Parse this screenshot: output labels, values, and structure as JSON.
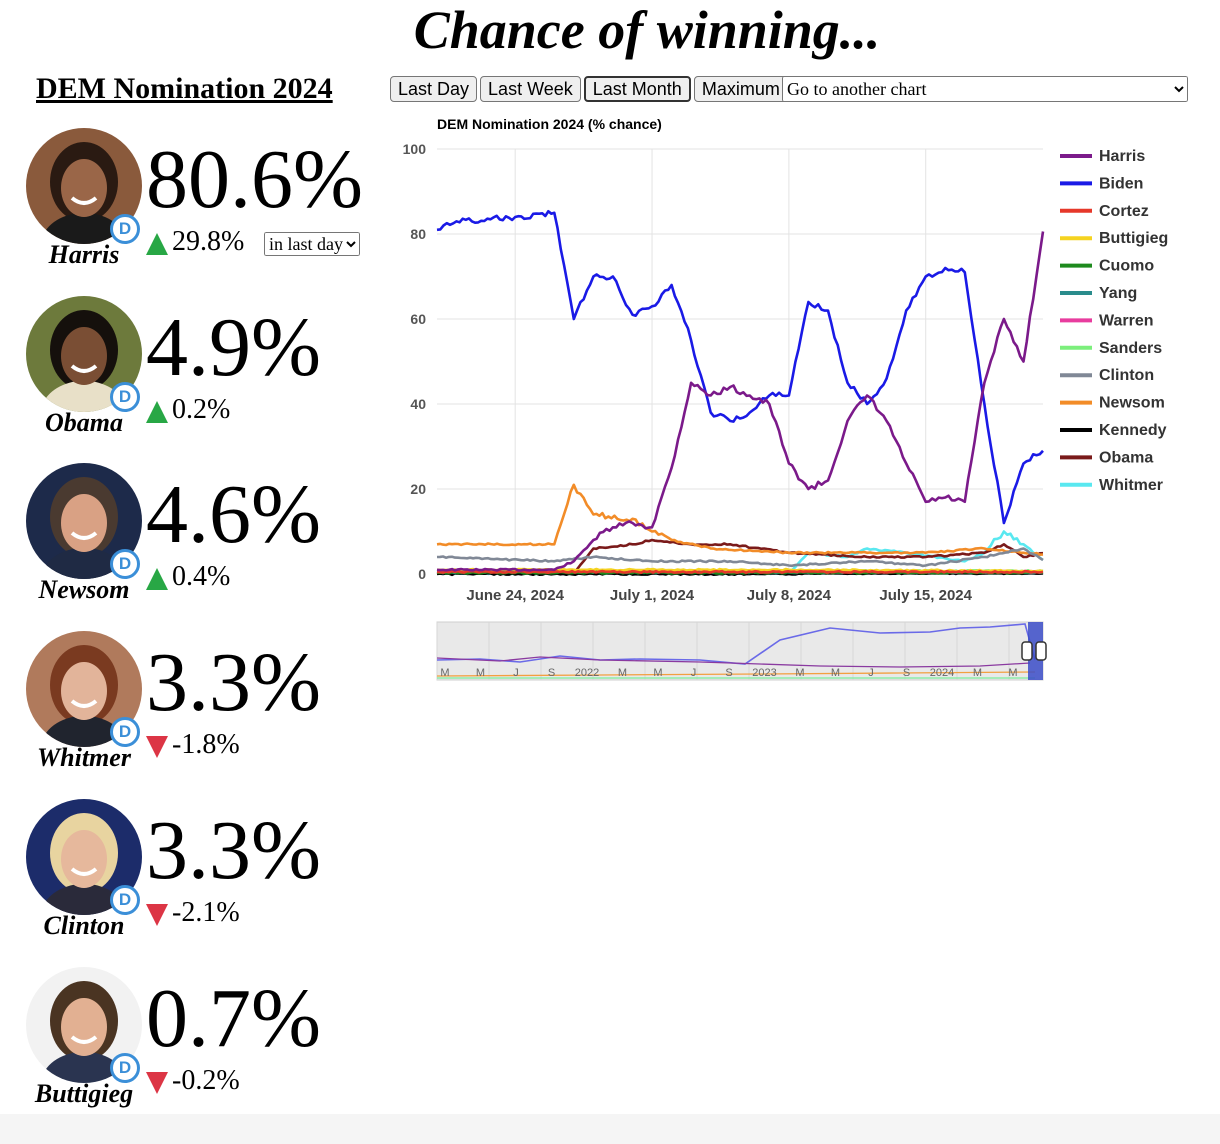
{
  "page_title": "Chance of winning...",
  "nomination_title": "DEM Nomination 2024",
  "buttons": [
    "Last Day",
    "Last Week",
    "Last Month",
    "Maximum"
  ],
  "active_button": "Last Month",
  "chart_select": "Go to another chart",
  "period_select": "in last day",
  "party_badge": "D",
  "candidates": [
    {
      "name": "Harris",
      "pct": "80.6%",
      "change": "29.8%",
      "direction": "up",
      "color": "#7b1a8a"
    },
    {
      "name": "Obama",
      "pct": "4.9%",
      "change": "0.2%",
      "direction": "up",
      "color": "#7a1a1a"
    },
    {
      "name": "Newsom",
      "pct": "4.6%",
      "change": "0.4%",
      "direction": "up",
      "color": "#f28c28"
    },
    {
      "name": "Whitmer",
      "pct": "3.3%",
      "change": "-1.8%",
      "direction": "down",
      "color": "#59e8f0"
    },
    {
      "name": "Clinton",
      "pct": "3.3%",
      "change": "-2.1%",
      "direction": "down",
      "color": "#808896"
    },
    {
      "name": "Buttigieg",
      "pct": "0.7%",
      "change": "-0.2%",
      "direction": "down",
      "color": "#f5d320"
    }
  ],
  "chart_data": {
    "type": "line",
    "title": "DEM Nomination 2024 (% chance)",
    "xlabel": "",
    "ylabel": "",
    "x_start": "2024-06-20",
    "x_end": "2024-07-21",
    "x_ticks": [
      "June 24, 2024",
      "July 1, 2024",
      "July 8, 2024",
      "July 15, 2024"
    ],
    "x_tick_dates": [
      "2024-06-24",
      "2024-07-01",
      "2024-07-08",
      "2024-07-15"
    ],
    "ylim": [
      0,
      100
    ],
    "y_ticks": [
      0,
      20,
      40,
      60,
      80,
      100
    ],
    "grid": true,
    "legend_position": "right",
    "series": [
      {
        "name": "Harris",
        "color": "#7b1a8a",
        "points": [
          [
            "2024-06-20",
            1
          ],
          [
            "2024-06-26",
            1
          ],
          [
            "2024-06-27",
            3
          ],
          [
            "2024-06-28",
            8
          ],
          [
            "2024-06-29",
            11
          ],
          [
            "2024-06-30",
            12
          ],
          [
            "2024-07-01",
            11
          ],
          [
            "2024-07-02",
            25
          ],
          [
            "2024-07-03",
            45
          ],
          [
            "2024-07-04",
            42
          ],
          [
            "2024-07-05",
            44
          ],
          [
            "2024-07-06",
            42
          ],
          [
            "2024-07-07",
            40
          ],
          [
            "2024-07-08",
            26
          ],
          [
            "2024-07-09",
            20
          ],
          [
            "2024-07-10",
            22
          ],
          [
            "2024-07-11",
            36
          ],
          [
            "2024-07-12",
            42
          ],
          [
            "2024-07-13",
            36
          ],
          [
            "2024-07-14",
            26
          ],
          [
            "2024-07-15",
            17
          ],
          [
            "2024-07-16",
            18
          ],
          [
            "2024-07-17",
            17
          ],
          [
            "2024-07-18",
            45
          ],
          [
            "2024-07-19",
            60
          ],
          [
            "2024-07-20",
            50
          ],
          [
            "2024-07-21",
            80.6
          ]
        ]
      },
      {
        "name": "Biden",
        "color": "#1a1ae6",
        "points": [
          [
            "2024-06-20",
            81
          ],
          [
            "2024-06-21",
            83
          ],
          [
            "2024-06-24",
            84
          ],
          [
            "2024-06-26",
            85
          ],
          [
            "2024-06-27",
            60
          ],
          [
            "2024-06-28",
            70
          ],
          [
            "2024-06-29",
            70
          ],
          [
            "2024-06-30",
            61
          ],
          [
            "2024-07-01",
            63
          ],
          [
            "2024-07-02",
            68
          ],
          [
            "2024-07-03",
            55
          ],
          [
            "2024-07-04",
            38
          ],
          [
            "2024-07-05",
            36
          ],
          [
            "2024-07-06",
            38
          ],
          [
            "2024-07-07",
            42
          ],
          [
            "2024-07-08",
            42
          ],
          [
            "2024-07-09",
            64
          ],
          [
            "2024-07-10",
            62
          ],
          [
            "2024-07-11",
            45
          ],
          [
            "2024-07-12",
            40
          ],
          [
            "2024-07-13",
            46
          ],
          [
            "2024-07-14",
            62
          ],
          [
            "2024-07-15",
            70
          ],
          [
            "2024-07-16",
            72
          ],
          [
            "2024-07-17",
            71
          ],
          [
            "2024-07-18",
            40
          ],
          [
            "2024-07-19",
            12
          ],
          [
            "2024-07-20",
            26
          ],
          [
            "2024-07-21",
            29
          ]
        ]
      },
      {
        "name": "Cortez",
        "color": "#e6382a",
        "points": [
          [
            "2024-06-20",
            0.5
          ],
          [
            "2024-07-21",
            0.5
          ]
        ]
      },
      {
        "name": "Buttigieg",
        "color": "#f5d320",
        "points": [
          [
            "2024-06-20",
            1
          ],
          [
            "2024-07-08",
            1
          ],
          [
            "2024-07-21",
            0.7
          ]
        ]
      },
      {
        "name": "Cuomo",
        "color": "#1e8a1e",
        "points": [
          [
            "2024-06-20",
            0.3
          ],
          [
            "2024-07-21",
            0.3
          ]
        ]
      },
      {
        "name": "Yang",
        "color": "#2a8c8c",
        "points": [
          [
            "2024-06-20",
            0.4
          ],
          [
            "2024-07-21",
            0.4
          ]
        ]
      },
      {
        "name": "Warren",
        "color": "#e83c9e",
        "points": [
          [
            "2024-06-20",
            0.6
          ],
          [
            "2024-07-21",
            0.6
          ]
        ]
      },
      {
        "name": "Sanders",
        "color": "#7cef7c",
        "points": [
          [
            "2024-06-20",
            0.7
          ],
          [
            "2024-07-21",
            0.7
          ]
        ]
      },
      {
        "name": "Clinton",
        "color": "#808896",
        "points": [
          [
            "2024-06-20",
            4
          ],
          [
            "2024-06-26",
            3
          ],
          [
            "2024-06-28",
            4
          ],
          [
            "2024-07-01",
            3
          ],
          [
            "2024-07-05",
            3
          ],
          [
            "2024-07-08",
            2
          ],
          [
            "2024-07-12",
            3
          ],
          [
            "2024-07-15",
            2
          ],
          [
            "2024-07-18",
            4
          ],
          [
            "2024-07-20",
            6
          ],
          [
            "2024-07-21",
            3.3
          ]
        ]
      },
      {
        "name": "Newsom",
        "color": "#f28c28",
        "points": [
          [
            "2024-06-20",
            7
          ],
          [
            "2024-06-26",
            7
          ],
          [
            "2024-06-27",
            21
          ],
          [
            "2024-06-28",
            14
          ],
          [
            "2024-06-30",
            13
          ],
          [
            "2024-07-01",
            10
          ],
          [
            "2024-07-02",
            8
          ],
          [
            "2024-07-04",
            6
          ],
          [
            "2024-07-08",
            5
          ],
          [
            "2024-07-12",
            5
          ],
          [
            "2024-07-15",
            5
          ],
          [
            "2024-07-18",
            6
          ],
          [
            "2024-07-20",
            5
          ],
          [
            "2024-07-21",
            4.6
          ]
        ]
      },
      {
        "name": "Kennedy",
        "color": "#000000",
        "points": [
          [
            "2024-06-20",
            0
          ],
          [
            "2024-07-08",
            0
          ],
          [
            "2024-07-09",
            0.2
          ],
          [
            "2024-07-21",
            0.2
          ]
        ]
      },
      {
        "name": "Obama",
        "color": "#7a1a1a",
        "points": [
          [
            "2024-06-27",
            0
          ],
          [
            "2024-06-28",
            6
          ],
          [
            "2024-06-30",
            7
          ],
          [
            "2024-07-01",
            8
          ],
          [
            "2024-07-03",
            7
          ],
          [
            "2024-07-05",
            7
          ],
          [
            "2024-07-08",
            5
          ],
          [
            "2024-07-12",
            4
          ],
          [
            "2024-07-15",
            4
          ],
          [
            "2024-07-18",
            5
          ],
          [
            "2024-07-19",
            7
          ],
          [
            "2024-07-20",
            4
          ],
          [
            "2024-07-21",
            4.9
          ]
        ]
      },
      {
        "name": "Whitmer",
        "color": "#59e8f0",
        "points": [
          [
            "2024-06-20",
            0.2
          ],
          [
            "2024-07-08",
            0.2
          ],
          [
            "2024-07-09",
            5
          ],
          [
            "2024-07-11",
            4
          ],
          [
            "2024-07-12",
            6
          ],
          [
            "2024-07-14",
            5
          ],
          [
            "2024-07-17",
            3
          ],
          [
            "2024-07-18",
            5
          ],
          [
            "2024-07-19",
            10
          ],
          [
            "2024-07-20",
            7
          ],
          [
            "2024-07-21",
            3.3
          ]
        ]
      }
    ],
    "navigator_labels": [
      "M",
      "M",
      "J",
      "S",
      "2022",
      "M",
      "M",
      "J",
      "S",
      "2023",
      "M",
      "M",
      "J",
      "S",
      "2024",
      "M",
      "M"
    ]
  }
}
